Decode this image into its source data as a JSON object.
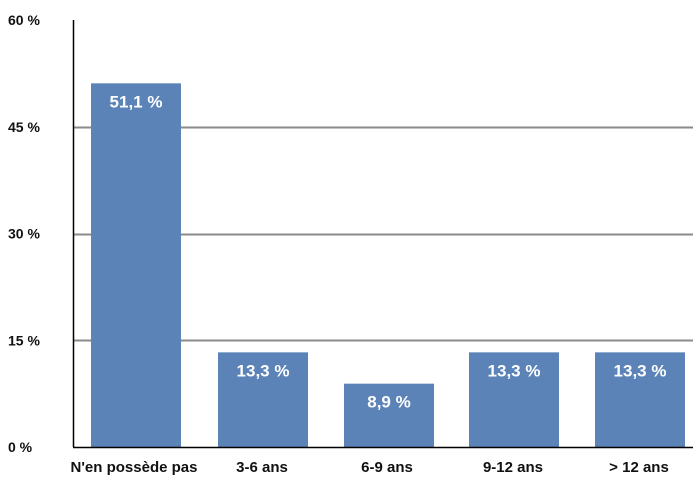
{
  "chart_data": {
    "type": "bar",
    "title": "",
    "xlabel": "",
    "ylabel": "",
    "categories": [
      "N'en possède pas",
      "3-6 ans",
      "6-9 ans",
      "9-12 ans",
      "> 12 ans"
    ],
    "values": [
      51.1,
      13.3,
      8.9,
      13.3,
      13.3
    ],
    "value_labels": [
      "51,1 %",
      "13,3 %",
      "8,9 %",
      "13,3 %",
      "13,3 %"
    ],
    "ylim": [
      0,
      60
    ],
    "yticks": [
      0,
      15,
      30,
      45,
      60
    ],
    "ytick_labels": [
      "0 %",
      "15 %",
      "30 %",
      "45 %",
      "60 %"
    ],
    "grid": true,
    "legend": "none",
    "colors": {
      "bar": "#5b83b8",
      "grid": "#8a8a8a",
      "axis": "#000000",
      "label_text": "#ffffff"
    }
  }
}
